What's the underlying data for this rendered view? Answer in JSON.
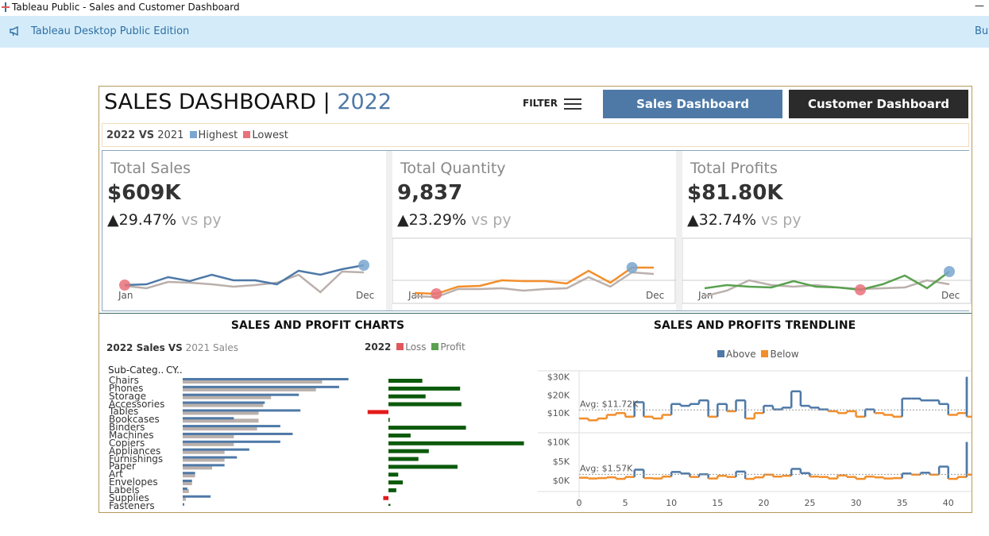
{
  "window": {
    "title": "Tableau Public - Sales and Customer Dashboard",
    "min_glyph": "—"
  },
  "banner": {
    "text": "Tableau Desktop Public Edition",
    "buy": "Buy"
  },
  "header": {
    "title": "SALES DASHBOARD",
    "sep": "|",
    "year": "2022",
    "filter": "FILTER",
    "btn_sales": "Sales Dashboard",
    "btn_customer": "Customer Dashboard"
  },
  "legend": {
    "cy": "2022 VS",
    "py": "2021",
    "highest": "Highest",
    "lowest": "Lowest",
    "color_high": "#7aa6cf",
    "color_low": "#e9717a"
  },
  "kpis": [
    {
      "label": "Total Sales",
      "value": "$609K",
      "arrow": "▲",
      "change": "29.47%",
      "vs": "vs py",
      "start": "Jan",
      "end": "Dec",
      "color": "#4e79a7",
      "cy": [
        52,
        53,
        62,
        57,
        65,
        58,
        58,
        53,
        70,
        65,
        72,
        77
      ],
      "py": [
        51,
        48,
        56,
        55,
        53,
        50,
        52,
        55,
        65,
        43,
        69,
        68
      ]
    },
    {
      "label": "Total Quantity",
      "value": "9,837",
      "arrow": "▲",
      "change": "23.29%",
      "vs": "vs py",
      "start": "Jan",
      "end": "Dec",
      "color": "#f28e2b",
      "cy": [
        42,
        41,
        50,
        51,
        58,
        57,
        57,
        54,
        70,
        55,
        74,
        74
      ],
      "py": [
        38,
        37,
        47,
        47,
        48,
        45,
        47,
        48,
        62,
        50,
        68,
        66
      ]
    },
    {
      "label": "Total Profits",
      "value": "$81.80K",
      "arrow": "▲",
      "change": "32.74%",
      "vs": "vs py",
      "start": "Jan",
      "end": "Dec",
      "color": "#59a14f",
      "cy": [
        48,
        52,
        50,
        49,
        57,
        50,
        49,
        46,
        53,
        64,
        48,
        69
      ],
      "py": [
        38,
        45,
        58,
        52,
        50,
        52,
        49,
        47,
        48,
        49,
        58,
        53
      ]
    }
  ],
  "sections": {
    "bars": "SALES AND PROFIT CHARTS",
    "trend": "SALES AND PROFITS TRENDLINE"
  },
  "bars_legend": {
    "cy": "2022 Sales VS",
    "py": "2021 Sales"
  },
  "pl_legend": {
    "year": "2022",
    "loss": "Loss",
    "profit": "Profit",
    "loss_color": "#e15759",
    "profit_color": "#59a14f"
  },
  "trend_legend": {
    "above": "Above",
    "below": "Below",
    "above_color": "#4e79a7",
    "below_color": "#f28e2b"
  },
  "sub_header": {
    "col1": "Sub-Categ..",
    "col2": "CY.."
  },
  "chart_data": [
    {
      "type": "bar",
      "title": "SALES AND PROFIT CHARTS",
      "categories": [
        "Chairs",
        "Phones",
        "Storage",
        "Accessories",
        "Tables",
        "Bookcases",
        "Binders",
        "Machines",
        "Copiers",
        "Appliances",
        "Furnishings",
        "Paper",
        "Art",
        "Envelopes",
        "Labels",
        "Supplies",
        "Fasteners"
      ],
      "series": [
        {
          "name": "2022 Sales",
          "values": [
            107,
            101,
            75,
            53,
            76,
            33,
            63,
            71,
            63,
            43,
            35,
            27,
            8,
            6,
            3,
            18,
            1
          ]
        },
        {
          "name": "2021 Sales",
          "values": [
            90,
            86,
            57,
            52,
            49,
            49,
            48,
            33,
            33,
            27,
            27,
            19,
            8,
            6,
            4,
            2,
            1
          ]
        }
      ],
      "down_arrows": [
        "Bookcases",
        "Art",
        "Labels"
      ]
    },
    {
      "type": "bar",
      "title": "2022 Loss Profit",
      "categories": [
        "Chairs",
        "Phones",
        "Storage",
        "Accessories",
        "Tables",
        "Bookcases",
        "Binders",
        "Machines",
        "Copiers",
        "Appliances",
        "Furnishings",
        "Paper",
        "Art",
        "Envelopes",
        "Labels",
        "Supplies",
        "Fasteners"
      ],
      "values": [
        5.2,
        11.0,
        5.7,
        11.2,
        -3.2,
        0.2,
        11.9,
        3.4,
        20.8,
        6.2,
        4.6,
        10.6,
        1.5,
        2.2,
        1.2,
        -0.8,
        0.3
      ]
    },
    {
      "type": "line",
      "title": "SALES AND PROFITS TRENDLINE",
      "xlim": [
        0,
        42
      ],
      "x_ticks": [
        "0",
        "5",
        "10",
        "15",
        "20",
        "25",
        "30",
        "35",
        "40"
      ],
      "sales_ticks": [
        "$30K",
        "$20K",
        "$10K"
      ],
      "profit_ticks": [
        "$10K",
        "$5K",
        "$0K"
      ],
      "sales_avg": "Avg: $11.72K",
      "profit_avg": "Avg: $1.57K",
      "sales": [
        7,
        6,
        7,
        9,
        10,
        8,
        16,
        8,
        7,
        9,
        15,
        14,
        15,
        17,
        8,
        15,
        11,
        17,
        7,
        10,
        14,
        12,
        13,
        22,
        14,
        13,
        12,
        11,
        10,
        11,
        8,
        12,
        10,
        9,
        8,
        18,
        18,
        17,
        17,
        15,
        9,
        10,
        30,
        8
      ],
      "profits": [
        0.7,
        0.5,
        0.6,
        0.8,
        0.4,
        0.9,
        2.8,
        0.6,
        0.5,
        1.0,
        2.2,
        1.8,
        0.9,
        1.6,
        0.5,
        1.2,
        0.9,
        2.3,
        0.4,
        0.8,
        1.5,
        1.0,
        1.2,
        3.0,
        1.9,
        1.0,
        0.9,
        0.5,
        1.3,
        0.9,
        0.4,
        1.0,
        0.8,
        0.5,
        0.6,
        1.8,
        1.5,
        2.0,
        1.5,
        3.6,
        0.4,
        0.9,
        10.0,
        1.5
      ]
    }
  ]
}
